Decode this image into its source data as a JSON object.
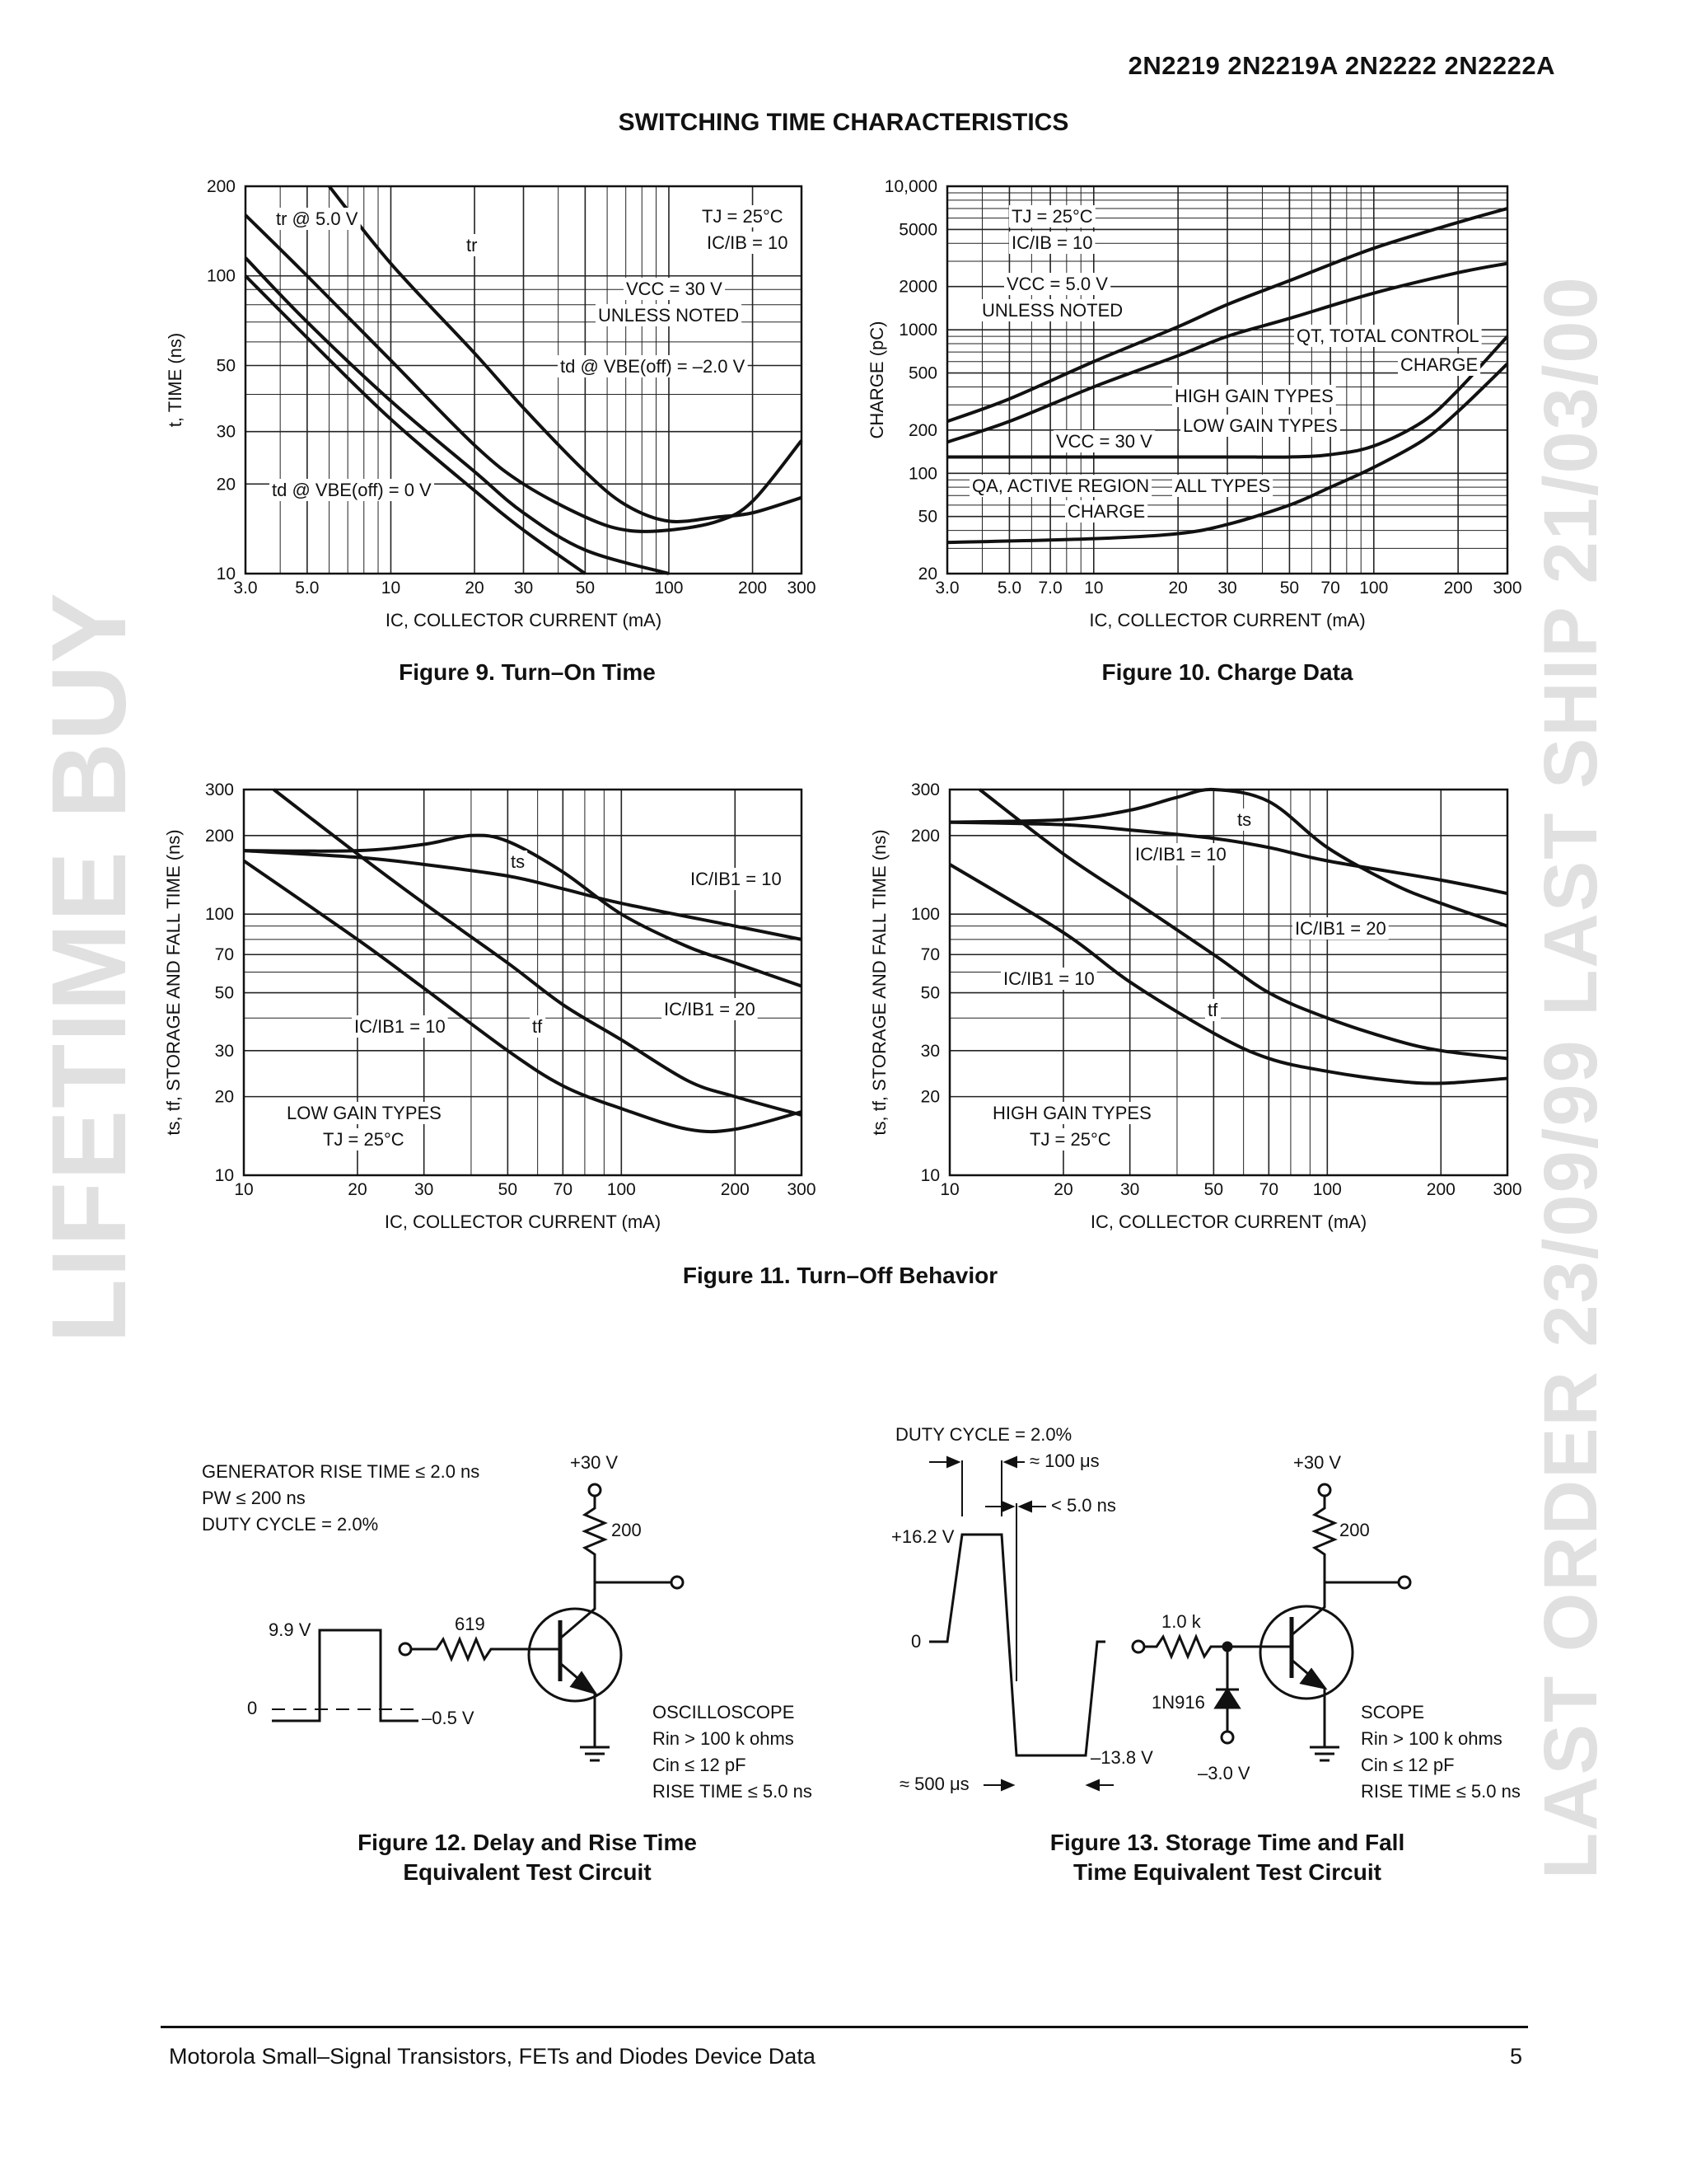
{
  "header": {
    "part_numbers": "2N2219 2N2219A 2N2222 2N2222A"
  },
  "section_title": "SWITCHING TIME CHARACTERISTICS",
  "watermarks": {
    "left": "LIFETIME BUY",
    "right": "LAST ORDER 23/09/99   LAST SHIP 21/03/00"
  },
  "figures": {
    "fig9": {
      "caption": "Figure 9. Turn–On Time",
      "xlabel": "IC, COLLECTOR CURRENT (mA)",
      "ylabel": "t, TIME (ns)",
      "annotations": [
        "tr @ 5.0 V",
        "tr",
        "TJ = 25°C",
        "IC/IB = 10",
        "VCC = 30 V",
        "UNLESS NOTED",
        "td @ VBE(off) = –2.0 V",
        "td @ VBE(off) = 0 V"
      ]
    },
    "fig10": {
      "caption": "Figure 10. Charge Data",
      "xlabel": "IC, COLLECTOR CURRENT (mA)",
      "ylabel": "CHARGE (pC)",
      "annotations": [
        "TJ = 25°C",
        "IC/IB = 10",
        "VCC = 5.0 V",
        "UNLESS NOTED",
        "QT, TOTAL CONTROL",
        "CHARGE",
        "HIGH GAIN TYPES",
        "LOW GAIN TYPES",
        "VCC = 30 V",
        "QA, ACTIVE REGION",
        "CHARGE",
        "ALL TYPES"
      ]
    },
    "fig11": {
      "caption": "Figure 11. Turn–Off Behavior",
      "left": {
        "xlabel": "IC, COLLECTOR CURRENT (mA)",
        "ylabel": "ts, tf, STORAGE AND FALL TIME (ns)",
        "annotations": [
          "ts",
          "IC/IB1 = 10",
          "IC/IB1 = 10",
          "tf",
          "IC/IB1 = 20",
          "LOW GAIN TYPES",
          "TJ = 25°C"
        ]
      },
      "right": {
        "xlabel": "IC, COLLECTOR CURRENT (mA)",
        "ylabel": "ts, tf, STORAGE AND FALL TIME (ns)",
        "annotations": [
          "ts",
          "IC/IB1 = 10",
          "IC/IB1 = 20",
          "IC/IB1 = 10",
          "tf",
          "HIGH GAIN TYPES",
          "TJ = 25°C"
        ]
      }
    },
    "fig12": {
      "caption_line1": "Figure 12. Delay and Rise Time",
      "caption_line2": "Equivalent Test Circuit",
      "notes": [
        "GENERATOR RISE TIME ≤ 2.0 ns",
        "PW ≤ 200 ns",
        "DUTY CYCLE = 2.0%"
      ],
      "supply": "+30 V",
      "collector_resistor": "200",
      "base_resistor": "619",
      "pulse_high": "9.9 V",
      "pulse_low": "0",
      "pulse_offset": "–0.5 V",
      "scope_lines": [
        "OSCILLOSCOPE",
        "Rin > 100 k ohms",
        "Cin ≤ 12 pF",
        "RISE TIME ≤ 5.0 ns"
      ]
    },
    "fig13": {
      "caption_line1": "Figure 13. Storage Time and Fall",
      "caption_line2": "Time Equivalent Test Circuit",
      "duty_cycle": "DUTY CYCLE = 2.0%",
      "period": "≈ 100 μs",
      "rise": "< 5.0 ns",
      "pulse_high": "+16.2 V",
      "pulse_zero": "0",
      "pulse_low": "–13.8 V",
      "width": "≈ 500 μs",
      "supply": "+30 V",
      "collector_resistor": "200",
      "base_resistor": "1.0 k",
      "diode": "1N916",
      "bias": "–3.0 V",
      "scope_lines": [
        "SCOPE",
        "Rin > 100 k ohms",
        "Cin ≤ 12 pF",
        "RISE TIME ≤ 5.0 ns"
      ]
    }
  },
  "chart_data": [
    {
      "id": "fig9",
      "type": "line",
      "title": "Figure 9. Turn–On Time",
      "xlabel": "IC, COLLECTOR CURRENT (mA)",
      "ylabel": "t, TIME (ns)",
      "xscale": "log",
      "yscale": "log",
      "xlim": [
        3,
        300
      ],
      "ylim": [
        10,
        200
      ],
      "grid": true,
      "xticks": [
        "3.0",
        "5.0",
        "10",
        "20",
        "30",
        "50",
        "100",
        "200",
        "300"
      ],
      "xtick_values": [
        3,
        5,
        10,
        20,
        30,
        50,
        100,
        200,
        300
      ],
      "yticks": [
        "10",
        "20",
        "30",
        "50",
        "100",
        "200"
      ],
      "ytick_values": [
        10,
        20,
        30,
        50,
        100,
        200
      ],
      "series": [
        {
          "name": "tr",
          "x": [
            6,
            10,
            20,
            30,
            50,
            70,
            100,
            150,
            200,
            300
          ],
          "y": [
            200,
            110,
            55,
            36,
            22,
            17,
            15,
            15.5,
            16,
            18
          ]
        },
        {
          "name": "tr @ 5.0 V",
          "x": [
            3,
            5,
            10,
            20,
            30,
            50,
            70,
            100,
            150,
            200,
            300
          ],
          "y": [
            160,
            100,
            52,
            27,
            20,
            15.5,
            14,
            14,
            15,
            17.5,
            28
          ]
        },
        {
          "name": "td @ VBE(off) = –2.0 V",
          "x": [
            3,
            5,
            10,
            20,
            30,
            50,
            100
          ],
          "y": [
            115,
            70,
            38,
            22,
            16,
            12,
            10
          ]
        },
        {
          "name": "td @ VBE(off) = 0 V",
          "x": [
            3,
            5,
            10,
            20,
            30,
            50
          ],
          "y": [
            100,
            62,
            33,
            19,
            14,
            10
          ]
        }
      ]
    },
    {
      "id": "fig10",
      "type": "line",
      "title": "Figure 10. Charge Data",
      "xlabel": "IC, COLLECTOR CURRENT (mA)",
      "ylabel": "CHARGE (pC)",
      "xscale": "log",
      "yscale": "log",
      "xlim": [
        3,
        300
      ],
      "ylim": [
        20,
        10000
      ],
      "grid": true,
      "xticks": [
        "3.0",
        "5.0",
        "7.0",
        "10",
        "20",
        "30",
        "50",
        "70",
        "100",
        "200",
        "300"
      ],
      "xtick_values": [
        3,
        5,
        7,
        10,
        20,
        30,
        50,
        70,
        100,
        200,
        300
      ],
      "yticks": [
        "20",
        "50",
        "100",
        "200",
        "500",
        "1000",
        "2000",
        "5000",
        "10,000"
      ],
      "ytick_values": [
        20,
        50,
        100,
        200,
        500,
        1000,
        2000,
        5000,
        10000
      ],
      "series": [
        {
          "name": "HIGH GAIN TYPES",
          "x": [
            3,
            5,
            10,
            20,
            30,
            50,
            100,
            200,
            300
          ],
          "y": [
            230,
            330,
            600,
            1050,
            1500,
            2200,
            3700,
            5600,
            7000
          ]
        },
        {
          "name": "LOW GAIN TYPES",
          "x": [
            3,
            5,
            10,
            20,
            30,
            50,
            100,
            200,
            300
          ],
          "y": [
            165,
            230,
            400,
            660,
            900,
            1200,
            1800,
            2500,
            2900
          ]
        },
        {
          "name": "VCC = 30 V",
          "x": [
            3,
            10,
            30,
            50,
            70,
            100,
            150,
            200,
            300
          ],
          "y": [
            130,
            130,
            130,
            130,
            135,
            155,
            230,
            380,
            900
          ]
        },
        {
          "name": "ALL TYPES",
          "x": [
            3,
            10,
            20,
            30,
            50,
            70,
            100,
            150,
            200,
            300
          ],
          "y": [
            33,
            35,
            38,
            44,
            60,
            80,
            110,
            170,
            270,
            580
          ]
        }
      ]
    },
    {
      "id": "fig11-left",
      "type": "line",
      "title": "LOW GAIN TYPES",
      "xlabel": "IC, COLLECTOR CURRENT (mA)",
      "ylabel": "ts, tf, STORAGE AND FALL TIME (ns)",
      "xscale": "log",
      "yscale": "log",
      "xlim": [
        10,
        300
      ],
      "ylim": [
        10,
        300
      ],
      "grid": true,
      "xticks": [
        "10",
        "20",
        "30",
        "50",
        "70",
        "100",
        "200",
        "300"
      ],
      "xtick_values": [
        10,
        20,
        30,
        50,
        70,
        100,
        200,
        300
      ],
      "yticks": [
        "10",
        "20",
        "30",
        "50",
        "70",
        "100",
        "200",
        "300"
      ],
      "ytick_values": [
        10,
        20,
        30,
        50,
        70,
        100,
        200,
        300
      ],
      "series": [
        {
          "name": "ts IC/IB1 = 10",
          "x": [
            10,
            20,
            30,
            40,
            50,
            70,
            100,
            150,
            200,
            300
          ],
          "y": [
            175,
            175,
            185,
            200,
            190,
            145,
            100,
            75,
            65,
            53
          ]
        },
        {
          "name": "ts IC/IB1 = 20",
          "x": [
            10,
            20,
            30,
            50,
            70,
            100,
            200,
            300
          ],
          "y": [
            175,
            165,
            155,
            140,
            125,
            110,
            90,
            80
          ]
        },
        {
          "name": "tf IC/IB1 = 20",
          "x": [
            12,
            20,
            30,
            50,
            70,
            100,
            150,
            200,
            300
          ],
          "y": [
            300,
            170,
            110,
            65,
            45,
            33,
            23,
            20,
            17
          ]
        },
        {
          "name": "tf IC/IB1 = 10",
          "x": [
            10,
            20,
            30,
            50,
            70,
            100,
            150,
            200,
            300
          ],
          "y": [
            160,
            80,
            52,
            30,
            22,
            18,
            15,
            15,
            17.5
          ]
        }
      ]
    },
    {
      "id": "fig11-right",
      "type": "line",
      "title": "HIGH GAIN TYPES",
      "xlabel": "IC, COLLECTOR CURRENT (mA)",
      "ylabel": "ts, tf, STORAGE AND FALL TIME (ns)",
      "xscale": "log",
      "yscale": "log",
      "xlim": [
        10,
        300
      ],
      "ylim": [
        10,
        300
      ],
      "grid": true,
      "xticks": [
        "10",
        "20",
        "30",
        "50",
        "70",
        "100",
        "200",
        "300"
      ],
      "xtick_values": [
        10,
        20,
        30,
        50,
        70,
        100,
        200,
        300
      ],
      "yticks": [
        "10",
        "20",
        "30",
        "50",
        "70",
        "100",
        "200",
        "300"
      ],
      "ytick_values": [
        10,
        20,
        30,
        50,
        70,
        100,
        200,
        300
      ],
      "series": [
        {
          "name": "ts IC/IB1 = 10",
          "x": [
            10,
            20,
            30,
            40,
            50,
            70,
            100,
            150,
            200,
            300
          ],
          "y": [
            225,
            230,
            250,
            280,
            300,
            270,
            180,
            130,
            110,
            90
          ]
        },
        {
          "name": "ts IC/IB1 = 20",
          "x": [
            10,
            20,
            30,
            50,
            70,
            100,
            200,
            300
          ],
          "y": [
            225,
            220,
            210,
            195,
            180,
            160,
            135,
            120
          ]
        },
        {
          "name": "tf IC/IB1 = 20",
          "x": [
            12,
            20,
            30,
            50,
            70,
            100,
            150,
            200,
            300
          ],
          "y": [
            300,
            170,
            115,
            70,
            50,
            40,
            33,
            30,
            28
          ]
        },
        {
          "name": "tf IC/IB1 = 10",
          "x": [
            10,
            20,
            30,
            50,
            70,
            100,
            150,
            200,
            300
          ],
          "y": [
            155,
            85,
            55,
            35,
            28,
            25,
            23,
            22.5,
            23.5
          ]
        }
      ]
    }
  ]
}
